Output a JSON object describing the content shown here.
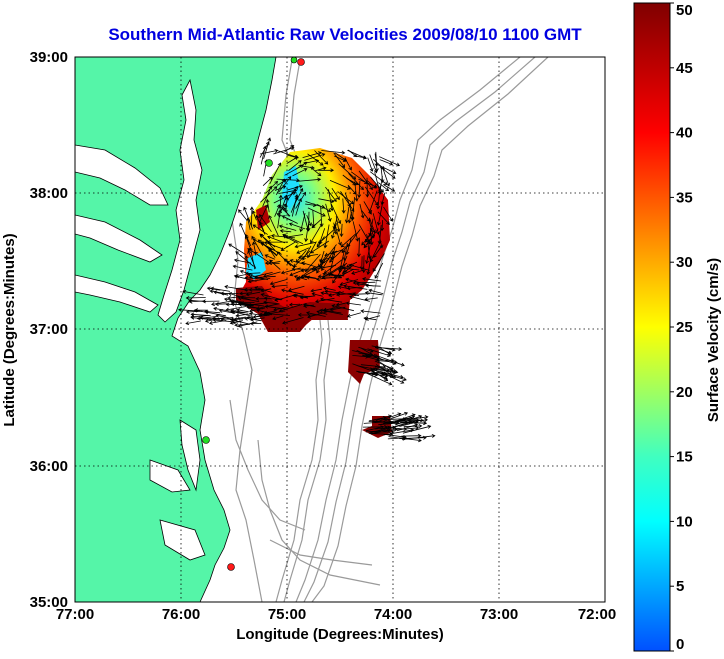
{
  "title": "Southern Mid-Atlantic Raw Velocities 2009/08/10 1100 GMT",
  "xlabel": "Longitude (Degrees:Minutes)",
  "ylabel": "Latitude (Degrees:Minutes)",
  "x_ticks": [
    "77:00",
    "76:00",
    "75:00",
    "74:00",
    "73:00",
    "72:00"
  ],
  "y_ticks": [
    "39:00",
    "38:00",
    "37:00",
    "36:00",
    "35:00"
  ],
  "colorbar": {
    "label": "Surface Velocity (cm/s)",
    "ticks": [
      "0",
      "5",
      "10",
      "15",
      "20",
      "25",
      "30",
      "35",
      "40",
      "45",
      "50"
    ],
    "range": [
      0,
      50
    ]
  },
  "colors": {
    "title": "#0000e0",
    "land": "#55f5a8",
    "bathymetry": "#9a9a9a",
    "grid": "#000000",
    "site_marker_red": "#ff1a1a",
    "site_marker_green": "#22dd22"
  }
}
